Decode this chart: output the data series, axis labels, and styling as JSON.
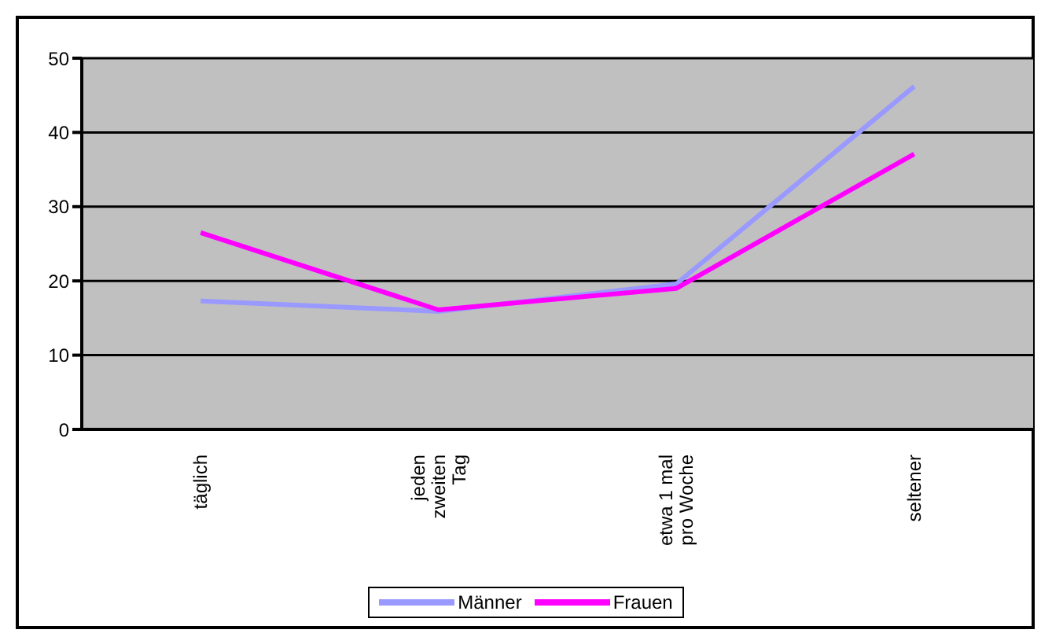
{
  "chart_data": {
    "type": "line",
    "categories": [
      "täglich",
      "jeden zweiten Tag",
      "etwa 1 mal pro Woche",
      "seltener"
    ],
    "series": [
      {
        "name": "Männer",
        "color": "#9999ff",
        "values": [
          17.3,
          15.9,
          19.6,
          46.2
        ]
      },
      {
        "name": "Frauen",
        "color": "#ff00ff",
        "values": [
          26.5,
          16.1,
          19.0,
          37.1
        ]
      }
    ],
    "ylim": [
      0,
      50
    ],
    "yticks": [
      0,
      10,
      20,
      30,
      40,
      50
    ],
    "grid": "y",
    "legend": "bottom",
    "marker": "none",
    "line_style": "solid"
  }
}
